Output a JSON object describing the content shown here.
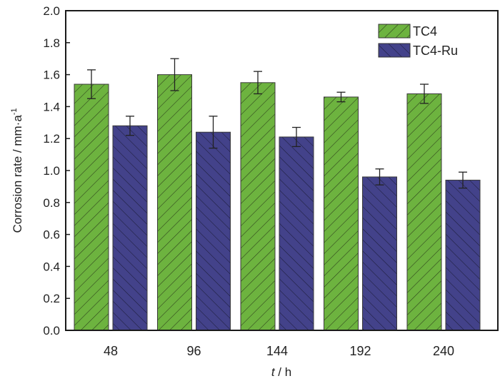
{
  "chart_data": {
    "type": "bar",
    "title": "",
    "xlabel": "t / h",
    "xlabel_italic_part": "t",
    "xlabel_rest": " / h",
    "ylabel": "Corrosion rate / mm·a⁻¹",
    "ylabel_main": "Corrosion rate / mm·a",
    "ylabel_sup": "-1",
    "categories": [
      "48",
      "96",
      "144",
      "192",
      "240"
    ],
    "ylim": [
      0,
      2.0
    ],
    "yticks": [
      "0.0",
      "0.2",
      "0.4",
      "0.6",
      "0.8",
      "1.0",
      "1.2",
      "1.4",
      "1.6",
      "1.8",
      "2.0"
    ],
    "grid": false,
    "legend_position": "top-right",
    "series": [
      {
        "name": "TC4",
        "color": "#6db33f",
        "hatch": "forward-diagonal",
        "values": [
          1.54,
          1.6,
          1.55,
          1.46,
          1.48
        ],
        "errors": [
          0.09,
          0.1,
          0.07,
          0.03,
          0.06
        ]
      },
      {
        "name": "TC4-Ru",
        "color": "#43428a",
        "hatch": "back-diagonal",
        "values": [
          1.28,
          1.24,
          1.21,
          0.96,
          0.94
        ],
        "errors": [
          0.06,
          0.1,
          0.06,
          0.05,
          0.05
        ]
      }
    ]
  }
}
